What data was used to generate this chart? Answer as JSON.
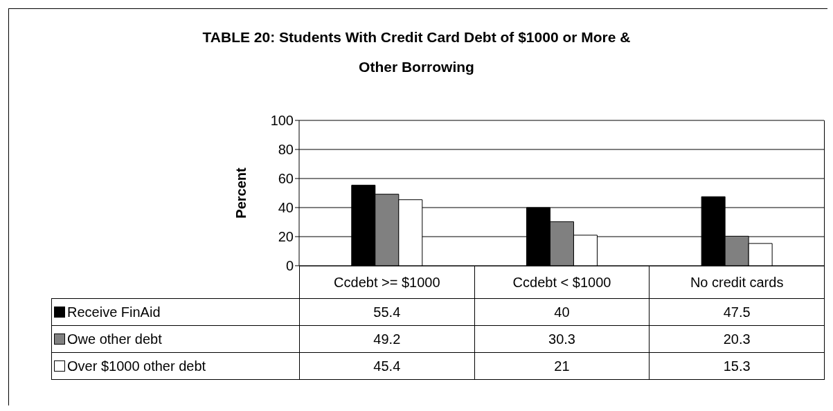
{
  "chart_data": {
    "type": "bar",
    "title": "TABLE 20:  Students With Credit Card Debt of $1000 or More & Other Borrowing",
    "ylabel": "Percent",
    "categories": [
      "Ccdebt >= $1000",
      "Ccdebt < $1000",
      "No credit cards"
    ],
    "series": [
      {
        "name": "Receive FinAid",
        "color": "#000000",
        "values": [
          55.4,
          40,
          47.5
        ]
      },
      {
        "name": "Owe other debt",
        "color": "#808080",
        "values": [
          49.2,
          30.3,
          20.3
        ]
      },
      {
        "name": "Over $1000 other debt",
        "color": "#ffffff",
        "values": [
          45.4,
          21,
          15.3
        ]
      }
    ],
    "ylim": [
      0,
      100
    ],
    "yticks": [
      0,
      20,
      40,
      60,
      80,
      100
    ],
    "grid": "y",
    "legend": "bottom",
    "data_labels": true
  }
}
